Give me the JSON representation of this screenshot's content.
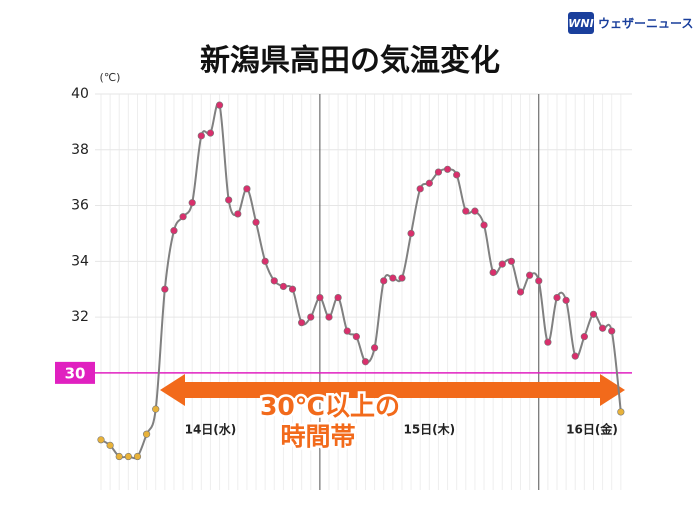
{
  "logo": {
    "mark": "WNI",
    "text": "ウェザーニュース"
  },
  "chart_data": {
    "type": "line",
    "title": "新潟県高田の気温変化",
    "y_unit": "(℃)",
    "values": [
      27.6,
      27.4,
      27.0,
      27.0,
      27.0,
      27.8,
      28.7,
      33.0,
      35.1,
      35.6,
      36.1,
      38.5,
      38.6,
      39.6,
      36.2,
      35.7,
      36.6,
      35.4,
      34.0,
      33.3,
      33.1,
      33.0,
      31.8,
      32.0,
      32.7,
      32.0,
      32.7,
      31.5,
      31.3,
      30.4,
      30.9,
      33.3,
      33.4,
      33.4,
      35.0,
      36.6,
      36.8,
      37.2,
      37.3,
      37.1,
      35.8,
      35.8,
      35.3,
      33.6,
      33.9,
      34.0,
      32.9,
      33.5,
      33.3,
      31.1,
      32.7,
      32.6,
      30.6,
      31.3,
      32.1,
      31.6,
      31.5,
      28.6
    ],
    "color": "#808080",
    "marker_colors": {
      "above": "#d8306c",
      "below": "#e8b23a"
    },
    "ylim": [
      25.8,
      40
    ],
    "yticks": [
      32,
      34,
      36,
      38,
      40
    ],
    "grid": true,
    "reference_line": {
      "value": 30,
      "color": "#e020c0"
    },
    "days": [
      {
        "label": "14日(水)",
        "start": 0
      },
      {
        "label": "15日(木)",
        "start": 24
      },
      {
        "label": "16日(金)",
        "start": 48
      }
    ],
    "annotation": [
      "30℃以上の",
      "時間帯"
    ]
  }
}
